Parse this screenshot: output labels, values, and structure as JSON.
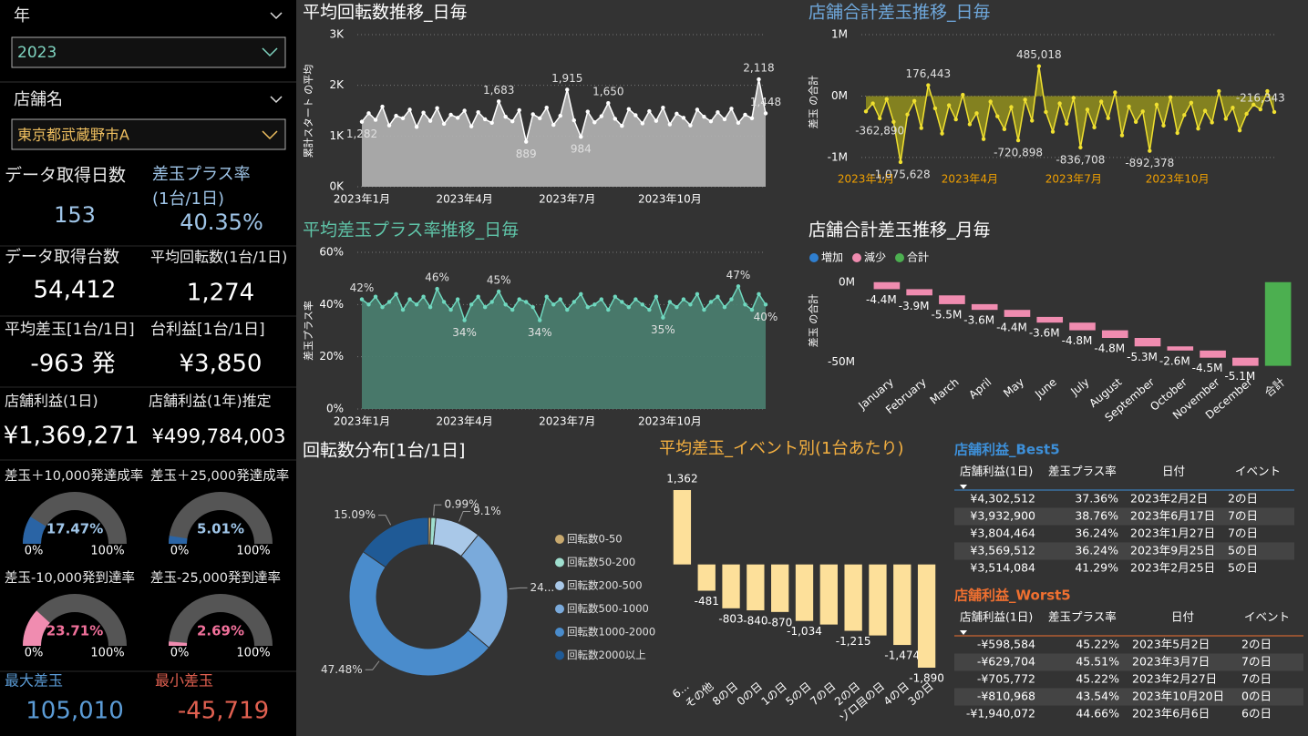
{
  "slicers": [
    {
      "label": "年",
      "value": "2023"
    },
    {
      "label": "店舗名",
      "value": "東京都武蔵野市A"
    }
  ],
  "kpis": [
    {
      "label": "データ取得日数",
      "value": "153"
    },
    {
      "label": "差玉プラス率",
      "sublabel": "(1台/1日)",
      "value": "40.35%"
    },
    {
      "label": "データ取得台数",
      "value": "54,412"
    },
    {
      "label": "平均回転数(1台/1日)",
      "value": "1,274"
    },
    {
      "label": "平均差玉[1台/1日]",
      "value": "-963 発"
    },
    {
      "label": "台利益[1台/1日]",
      "value": "¥3,850"
    },
    {
      "label": "店舗利益(1日)",
      "value": "¥1,369,271"
    },
    {
      "label": "店舗利益(1年)推定",
      "value": "¥499,784,003"
    }
  ],
  "gauges": [
    {
      "title": "差玉＋10,000発達成率",
      "value": 17.47,
      "value_label": "17.47%",
      "color": "#2a64a5",
      "min": {
        "value": 0,
        "label": "0%"
      },
      "max": {
        "value": 100,
        "label": "100%"
      }
    },
    {
      "title": "差玉＋25,000発達成率",
      "value": 5.01,
      "value_label": "5.01%",
      "color": "#2a64a5",
      "min": {
        "value": 0,
        "label": "0%"
      },
      "max": {
        "value": 100,
        "label": "100%"
      }
    },
    {
      "title": "差玉-10,000発到達率",
      "value": 23.71,
      "value_label": "23.71%",
      "color": "#f08cb0",
      "min": {
        "value": 0,
        "label": "0%"
      },
      "max": {
        "value": 100,
        "label": "100%"
      }
    },
    {
      "title": "差玉-25,000発到達率",
      "value": 2.69,
      "value_label": "2.69%",
      "color": "#f08cb0",
      "min": {
        "value": 0,
        "label": "0%"
      },
      "max": {
        "value": 100,
        "label": "100%"
      }
    }
  ],
  "extremes": [
    {
      "label": "最大差玉",
      "value": "105,010"
    },
    {
      "label": "最小差玉",
      "value": "-45,719"
    }
  ],
  "chart_data": [
    {
      "type": "line",
      "title": "平均回転数推移_日毎",
      "y_label": "累計スタート の平均",
      "color": "#ffffff",
      "area_color": "#b4b4b4",
      "grid": true,
      "xlim": [
        0,
        59
      ],
      "xticks": [
        {
          "value": 0,
          "label": "2023年1月"
        },
        {
          "value": 15,
          "label": "2023年4月"
        },
        {
          "value": 30,
          "label": "2023年7月"
        },
        {
          "value": 45,
          "label": "2023年10月"
        }
      ],
      "ylim": [
        0,
        3000
      ],
      "yticks": [
        {
          "value": 0,
          "label": "0K"
        },
        {
          "value": 1000,
          "label": "1K"
        },
        {
          "value": 2000,
          "label": "2K"
        },
        {
          "value": 3000,
          "label": "3K"
        }
      ],
      "values": [
        1282,
        1450,
        1320,
        1580,
        1210,
        1400,
        1350,
        1520,
        1180,
        1460,
        1300,
        1550,
        1240,
        1420,
        1360,
        1500,
        1190,
        1470,
        1330,
        1260,
        1683,
        1380,
        1290,
        1510,
        889,
        1430,
        1350,
        1560,
        1220,
        1400,
        1915,
        1310,
        984,
        1480,
        1270,
        1390,
        1650,
        1340,
        1200,
        1530,
        1410,
        1250,
        1490,
        1300,
        1560,
        1230,
        1440,
        1360,
        1210,
        1520,
        1380,
        1290,
        1470,
        1330,
        1540,
        1260,
        1420,
        1350,
        2118,
        1448
      ],
      "value_labels": [
        "1,282",
        null,
        null,
        null,
        null,
        null,
        null,
        null,
        null,
        null,
        null,
        null,
        null,
        null,
        null,
        null,
        null,
        null,
        null,
        null,
        "1,683",
        null,
        null,
        null,
        "889",
        null,
        null,
        null,
        null,
        null,
        "1,915",
        null,
        "984",
        null,
        null,
        null,
        "1,650",
        null,
        null,
        null,
        null,
        null,
        null,
        null,
        null,
        null,
        null,
        null,
        null,
        null,
        null,
        null,
        null,
        null,
        null,
        null,
        null,
        null,
        "2,118",
        "1,448"
      ]
    },
    {
      "type": "line",
      "title": "店舗合計差玉推移_日毎",
      "y_label": "差玉 の合計",
      "color": "#f0e030",
      "area_color": "#8c8a1e",
      "grid": true,
      "xlim": [
        0,
        59
      ],
      "xticks": [
        {
          "value": 0,
          "label": "2023年1月"
        },
        {
          "value": 15,
          "label": "2023年4月"
        },
        {
          "value": 30,
          "label": "2023年7月"
        },
        {
          "value": 45,
          "label": "2023年10月"
        }
      ],
      "ylim": [
        -1150000,
        1000000
      ],
      "yticks": [
        {
          "value": -1000000,
          "label": "-1M"
        },
        {
          "value": 0,
          "label": "0M"
        },
        {
          "value": 1000000,
          "label": "1M"
        }
      ],
      "values": [
        -250000,
        -120000,
        -362890,
        -50000,
        -420000,
        -1075628,
        -300000,
        -80000,
        -520000,
        176443,
        -200000,
        -610000,
        -150000,
        -380000,
        20000,
        -460000,
        -280000,
        -700000,
        -90000,
        -330000,
        -540000,
        -180000,
        -720898,
        -60000,
        -400000,
        485018,
        -260000,
        -580000,
        -120000,
        -450000,
        -30000,
        -836708,
        -220000,
        -510000,
        -90000,
        -360000,
        60000,
        -640000,
        -170000,
        -420000,
        -250000,
        -892378,
        -140000,
        -480000,
        -20000,
        -600000,
        -310000,
        -110000,
        -530000,
        -240000,
        -430000,
        80000,
        -370000,
        -190000,
        -560000,
        -290000,
        -140000,
        -216343,
        80000,
        -260000
      ],
      "value_labels": [
        null,
        null,
        "-362,890",
        null,
        null,
        "-1,075,628",
        null,
        null,
        null,
        "176,443",
        null,
        null,
        null,
        null,
        null,
        null,
        null,
        null,
        null,
        null,
        null,
        null,
        "-720,898",
        null,
        null,
        "485,018",
        null,
        null,
        null,
        null,
        null,
        "-836,708",
        null,
        null,
        null,
        null,
        null,
        null,
        null,
        null,
        null,
        "-892,378",
        null,
        null,
        null,
        null,
        null,
        null,
        null,
        null,
        null,
        null,
        null,
        null,
        null,
        null,
        null,
        "-216,343",
        null,
        null
      ]
    },
    {
      "type": "line",
      "title": "平均差玉プラス率推移_日毎",
      "y_label": "差玉プラス率",
      "color": "#6fd8bf",
      "area_color": "#4a7f70",
      "grid": true,
      "xlim": [
        0,
        59
      ],
      "xticks": [
        {
          "value": 0,
          "label": "2023年1月"
        },
        {
          "value": 15,
          "label": "2023年4月"
        },
        {
          "value": 30,
          "label": "2023年7月"
        },
        {
          "value": 45,
          "label": "2023年10月"
        }
      ],
      "ylim": [
        0,
        60
      ],
      "yticks": [
        {
          "value": 0,
          "label": "0%"
        },
        {
          "value": 20,
          "label": "20%"
        },
        {
          "value": 40,
          "label": "40%"
        },
        {
          "value": 60,
          "label": "60%"
        }
      ],
      "values": [
        42,
        40,
        43,
        39,
        41,
        44,
        38,
        42,
        40,
        43,
        39,
        46,
        41,
        38,
        42,
        34,
        40,
        43,
        39,
        41,
        45,
        40,
        38,
        42,
        41,
        39,
        34,
        43,
        40,
        42,
        38,
        41,
        44,
        39,
        40,
        42,
        38,
        43,
        41,
        39,
        42,
        40,
        38,
        43,
        35,
        41,
        39,
        42,
        40,
        44,
        38,
        41,
        43,
        39,
        42,
        47,
        40,
        38,
        44,
        40
      ],
      "value_labels": [
        "42%",
        null,
        null,
        null,
        null,
        null,
        null,
        null,
        null,
        null,
        null,
        "46%",
        null,
        null,
        null,
        "34%",
        null,
        null,
        null,
        null,
        "45%",
        null,
        null,
        null,
        null,
        null,
        "34%",
        null,
        null,
        null,
        null,
        null,
        null,
        null,
        null,
        null,
        null,
        null,
        null,
        null,
        null,
        null,
        null,
        null,
        "35%",
        null,
        null,
        null,
        null,
        null,
        null,
        null,
        null,
        null,
        null,
        "47%",
        null,
        null,
        null,
        "40%"
      ]
    },
    {
      "type": "waterfall",
      "title": "店舗合計差玉推移_月毎",
      "y_label": "差玉 の合計",
      "legend": [
        {
          "name": "増加",
          "color": "#2f7fd0"
        },
        {
          "name": "減少",
          "color": "#f08cb0"
        },
        {
          "name": "合計",
          "color": "#4caf50"
        }
      ],
      "categories": [
        "January",
        "February",
        "March",
        "April",
        "May",
        "June",
        "July",
        "August",
        "September",
        "October",
        "November",
        "December",
        "合計"
      ],
      "values": [
        -4.4,
        -3.9,
        -5.5,
        -3.6,
        -4.4,
        -3.6,
        -4.8,
        -4.8,
        -5.3,
        -2.6,
        -4.5,
        -5.1,
        -52.5
      ],
      "value_labels": [
        "-4.4M",
        "-3.9M",
        "-5.5M",
        "-3.6M",
        "-4.4M",
        "-3.6M",
        "-4.8M",
        "-4.8M",
        "-5.3M",
        "-2.6M",
        "-4.5M",
        "-5.1M",
        null
      ],
      "ylim": [
        -55,
        5
      ],
      "yticks": [
        {
          "value": 0,
          "label": "0M"
        },
        {
          "value": -50,
          "label": "-50M"
        }
      ]
    },
    {
      "type": "donut",
      "title": "回転数分布[1台/1日]",
      "categories": [
        "回転数0-50",
        "回転数50-200",
        "回転数200-500",
        "回転数500-1000",
        "回転数1000-2000",
        "回転数2000以上"
      ],
      "values": [
        0.5,
        0.99,
        9.1,
        24.84,
        47.48,
        15.09
      ],
      "value_labels": [
        null,
        "0.99%",
        "9.1%",
        "24...",
        "47.48%",
        "15.09%"
      ],
      "colors": [
        "#c8a96e",
        "#9fdfcf",
        "#a9c8e8",
        "#7aaadb",
        "#4a8ccc",
        "#1f5a96"
      ]
    },
    {
      "type": "bar",
      "title": "平均差玉_イベント別(1台あたり)",
      "color": "#fde09a",
      "categories": [
        "6...",
        "その他",
        "8の日",
        "0の日",
        "1の日",
        "5の日",
        "7の日",
        "2の日",
        "ゾロ目の日",
        "4の日",
        "3の日"
      ],
      "values": [
        1362,
        -481,
        -803,
        -840,
        -870,
        -1034,
        -1100,
        -1215,
        -1300,
        -1474,
        -1890
      ],
      "value_labels": [
        "1,362",
        "-481",
        "-803",
        "-840",
        "-870",
        "-1,034",
        null,
        "-1,215",
        null,
        "-1,474",
        "-1,890"
      ]
    }
  ],
  "tables": [
    {
      "title": "店舗利益_Best5",
      "columns": [
        "店舗利益(1日)",
        "差玉プラス率",
        "日付",
        "イベント"
      ],
      "rows": [
        [
          "¥4,302,512",
          "37.36%",
          "2023年2月2日",
          "2の日"
        ],
        [
          "¥3,932,900",
          "38.76%",
          "2023年6月17日",
          "7の日"
        ],
        [
          "¥3,804,464",
          "36.24%",
          "2023年1月27日",
          "7の日"
        ],
        [
          "¥3,569,512",
          "36.24%",
          "2023年9月25日",
          "5の日"
        ],
        [
          "¥3,514,084",
          "41.29%",
          "2023年2月25日",
          "5の日"
        ]
      ]
    },
    {
      "title": "店舗利益_Worst5",
      "columns": [
        "店舗利益(1日)",
        "差玉プラス率",
        "日付",
        "イベント"
      ],
      "rows": [
        [
          "-¥598,584",
          "45.22%",
          "2023年5月2日",
          "2の日"
        ],
        [
          "-¥629,704",
          "45.51%",
          "2023年3月7日",
          "7の日"
        ],
        [
          "-¥705,772",
          "45.22%",
          "2023年2月27日",
          "7の日"
        ],
        [
          "-¥810,968",
          "43.54%",
          "2023年10月20日",
          "0の日"
        ],
        [
          "-¥1,940,072",
          "44.66%",
          "2023年6月6日",
          "6の日"
        ]
      ]
    }
  ]
}
